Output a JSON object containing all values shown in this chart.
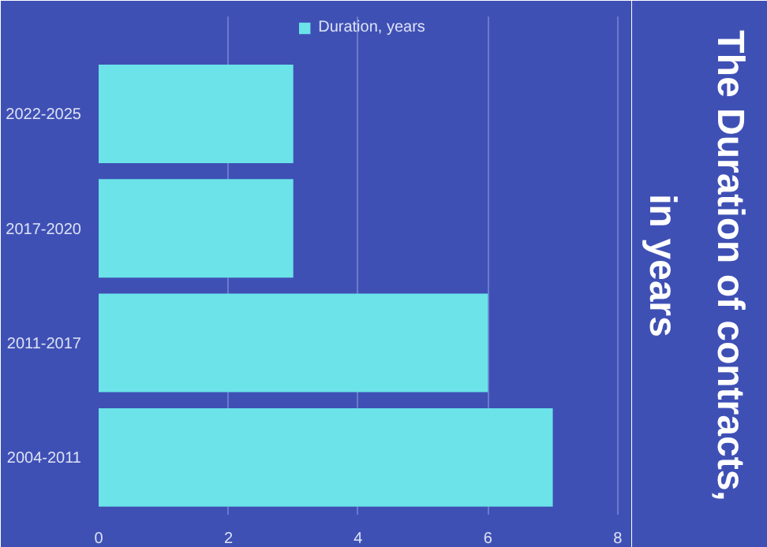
{
  "chart_data": {
    "type": "bar",
    "orientation": "horizontal",
    "title": "The Duration of contracts,\nin years",
    "categories": [
      "2022-2025",
      "2017-2020",
      "2011-2017",
      "2004-2011"
    ],
    "series": [
      {
        "name": "Duration, years",
        "color": "#6be3e8",
        "values": [
          3,
          3,
          6,
          7
        ]
      }
    ],
    "xlim": [
      0,
      8.1
    ],
    "xticks": [
      0,
      2,
      4,
      6,
      8
    ],
    "grid": "x",
    "legend": "top"
  }
}
